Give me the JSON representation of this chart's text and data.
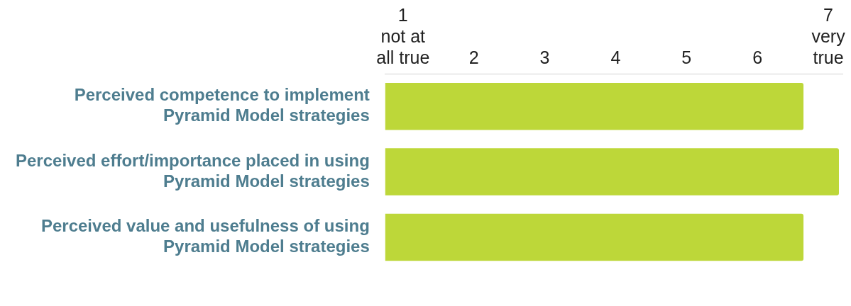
{
  "chart_data": {
    "type": "bar",
    "orientation": "horizontal",
    "categories": [
      "Perceived competence to implement\nPyramid Model strategies",
      "Perceived effort/importance placed in using\nPyramid Model strategies",
      "Perceived value and usefulness of using\nPyramid Model strategies"
    ],
    "values": [
      6.65,
      7.15,
      6.65
    ],
    "color": "#bdd739",
    "xlim": [
      0.75,
      7.2
    ],
    "xticks": [
      {
        "value": 1,
        "label": "1\nnot at\nall true"
      },
      2,
      3,
      4,
      5,
      6,
      {
        "value": 7,
        "label": "7\nvery\ntrue"
      }
    ],
    "grid": false,
    "legend": false
  }
}
